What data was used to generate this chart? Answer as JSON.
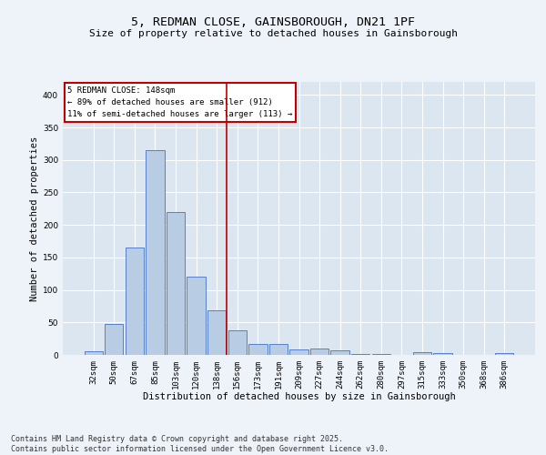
{
  "title": "5, REDMAN CLOSE, GAINSBOROUGH, DN21 1PF",
  "subtitle": "Size of property relative to detached houses in Gainsborough",
  "xlabel": "Distribution of detached houses by size in Gainsborough",
  "ylabel": "Number of detached properties",
  "categories": [
    "32sqm",
    "50sqm",
    "67sqm",
    "85sqm",
    "103sqm",
    "120sqm",
    "138sqm",
    "156sqm",
    "173sqm",
    "191sqm",
    "209sqm",
    "227sqm",
    "244sqm",
    "262sqm",
    "280sqm",
    "297sqm",
    "315sqm",
    "333sqm",
    "350sqm",
    "368sqm",
    "386sqm"
  ],
  "values": [
    5,
    48,
    165,
    315,
    220,
    120,
    68,
    38,
    17,
    17,
    8,
    10,
    7,
    2,
    1,
    0,
    4,
    3,
    0,
    0,
    3
  ],
  "bar_color": "#b8cce4",
  "bar_edge_color": "#4472c4",
  "background_color": "#dce6f1",
  "grid_color": "#ffffff",
  "vline_color": "#c00000",
  "annotation_text": "5 REDMAN CLOSE: 148sqm\n← 89% of detached houses are smaller (912)\n11% of semi-detached houses are larger (113) →",
  "annotation_box_color": "#ffffff",
  "annotation_box_edge": "#c00000",
  "footer": "Contains HM Land Registry data © Crown copyright and database right 2025.\nContains public sector information licensed under the Open Government Licence v3.0.",
  "fig_bg_color": "#eef2f9",
  "ylim": [
    0,
    420
  ],
  "title_fontsize": 9.5,
  "subtitle_fontsize": 8,
  "axis_label_fontsize": 7.5,
  "tick_fontsize": 6.5,
  "annotation_fontsize": 6.5,
  "footer_fontsize": 6.0
}
